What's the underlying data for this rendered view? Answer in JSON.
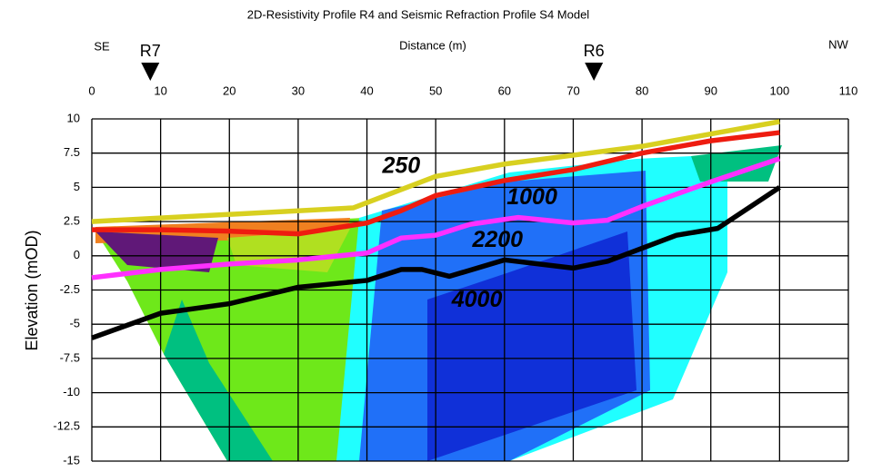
{
  "chart_data": {
    "type": "line",
    "title": "2D-Resistivity Profile R4 and Seismic Refraction Profile S4 Model",
    "x_label": "Distance (m)",
    "y_label": "Elevation (mOD)",
    "left_label": "SE",
    "right_label": "NW",
    "xlim": [
      0,
      110
    ],
    "xticks": [
      0,
      10,
      20,
      30,
      40,
      50,
      60,
      70,
      80,
      90,
      100,
      110
    ],
    "ylim": [
      -15,
      10
    ],
    "yticks": [
      10,
      7.5,
      5,
      2.5,
      0,
      -2.5,
      -5,
      -7.5,
      -10,
      -12.5,
      -15
    ],
    "grid": true,
    "series": [
      {
        "color": "#d8d020",
        "x": [
          0,
          38,
          50,
          60,
          80,
          90,
          100
        ],
        "values": [
          2.5,
          3.5,
          5.8,
          6.7,
          8,
          8.9,
          9.8
        ]
      },
      {
        "color": "#ee1c10",
        "x": [
          0,
          10,
          20,
          30,
          40,
          45,
          50,
          60,
          70,
          80,
          90,
          100
        ],
        "values": [
          1.9,
          1.9,
          1.8,
          1.6,
          2.4,
          3.3,
          4.4,
          5.5,
          6.3,
          7.5,
          8.4,
          9
        ]
      },
      {
        "color": "#ff30ff",
        "x": [
          0,
          10,
          20,
          30,
          40,
          45,
          50,
          55,
          62,
          70,
          75,
          80,
          90,
          100
        ],
        "values": [
          -1.6,
          -1,
          -0.6,
          -0.3,
          0.2,
          1.3,
          1.5,
          2.3,
          2.8,
          2.4,
          2.6,
          3.6,
          5.4,
          7.1
        ]
      },
      {
        "color": "#000000",
        "x": [
          0,
          10,
          20,
          30,
          40,
          45,
          48,
          52,
          60,
          70,
          75,
          85,
          91,
          100
        ],
        "values": [
          -6,
          -4.2,
          -3.5,
          -2.3,
          -1.8,
          -1,
          -1,
          -1.5,
          -0.3,
          -0.9,
          -0.4,
          1.5,
          2,
          5
        ]
      }
    ],
    "annotations": [
      {
        "text": "250",
        "x": 45,
        "y": 6.5
      },
      {
        "text": "1000",
        "x": 64,
        "y": 4.2
      },
      {
        "text": "2200",
        "x": 59,
        "y": 1.1
      },
      {
        "text": "4000",
        "x": 56,
        "y": -3.3
      }
    ],
    "markers": [
      {
        "label": "R7",
        "x": 8.5
      },
      {
        "label": "R6",
        "x": 73
      }
    ]
  }
}
